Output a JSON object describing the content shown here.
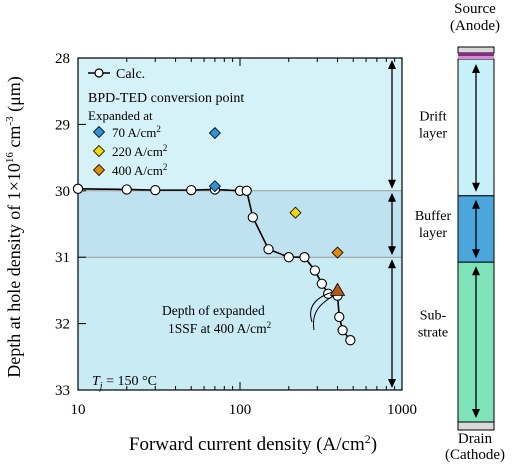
{
  "chart_data": {
    "type": "scatter",
    "xlabel": "Forward current density (A/cm",
    "xlabel_sup": "2",
    "xlabel_end": ")",
    "ylabel": "Depth at hole density of 1×10",
    "ylabel_sup": "16",
    "ylabel_mid": " cm",
    "ylabel_sup2": "-3",
    "ylabel_end": " (μm)",
    "x_scale": "log",
    "xlim": [
      10,
      1000
    ],
    "ylim": [
      28,
      33
    ],
    "y_inverted": true,
    "xticks": [
      "10",
      "100",
      "1000"
    ],
    "yticks": [
      "28",
      "29",
      "30",
      "31",
      "32",
      "33"
    ],
    "layer_boundaries": [
      30,
      31
    ],
    "layers": [
      {
        "label": "Drift",
        "label2": "layer",
        "range": [
          28,
          30
        ]
      },
      {
        "label": "Buffer",
        "label2": "layer",
        "range": [
          30,
          31
        ]
      },
      {
        "label": "Sub-",
        "label2": "strate",
        "range": [
          31,
          33
        ]
      }
    ],
    "legend": {
      "calc": "Calc.",
      "bpd_title": "BPD-TED conversion point",
      "expanded_at": "Expanded at",
      "markers": [
        {
          "label": "70 A/cm",
          "sup": "2",
          "color": "#2f8fd8"
        },
        {
          "label": "220 A/cm",
          "sup": "2",
          "color": "#f5d800"
        },
        {
          "label": "400 A/cm",
          "sup": "2",
          "color": "#e08a00"
        }
      ]
    },
    "series": [
      {
        "name": "Calc.",
        "kind": "line-with-markers",
        "points": [
          [
            10,
            29.97
          ],
          [
            20,
            29.98
          ],
          [
            30,
            29.99
          ],
          [
            50,
            29.99
          ],
          [
            70,
            29.98
          ],
          [
            100,
            30.0
          ],
          [
            110,
            30.0
          ],
          [
            120,
            30.4
          ],
          [
            150,
            30.88
          ],
          [
            200,
            31.0
          ],
          [
            250,
            31.0
          ],
          [
            290,
            31.2
          ],
          [
            320,
            31.4
          ],
          [
            350,
            31.55
          ],
          [
            400,
            31.58
          ],
          [
            410,
            31.9
          ],
          [
            430,
            32.1
          ],
          [
            480,
            32.25
          ]
        ]
      },
      {
        "name": "70 A/cm²",
        "kind": "diamond",
        "color": "#2f8fd8",
        "points": [
          [
            70,
            29.13
          ],
          [
            70,
            29.93
          ]
        ]
      },
      {
        "name": "220 A/cm²",
        "kind": "diamond",
        "color": "#f5d800",
        "points": [
          [
            220,
            30.33
          ]
        ]
      },
      {
        "name": "400 A/cm²",
        "kind": "diamond",
        "color": "#e08a00",
        "points": [
          [
            400,
            30.93
          ]
        ]
      },
      {
        "name": "Depth of expanded 1SSF at 400 A/cm²",
        "kind": "triangle",
        "color": "#b55a10",
        "points": [
          [
            400,
            31.5
          ]
        ]
      }
    ],
    "annotation": {
      "line1": "Depth of expanded",
      "line2": "1SSF at 400 A/cm",
      "line2_sup": "2"
    },
    "condition": {
      "var": "T",
      "sub": "j",
      "text": " = 150 °C"
    }
  },
  "side_panel": {
    "source_line1": "Source",
    "source_line2": "(Anode)",
    "drain_line1": "Drain",
    "drain_line2": "(Cathode)"
  },
  "colors": {
    "drift_bg": "#d6f2f9",
    "buffer_bg": "#bfe2f0",
    "substrate_bg": "#c9ecf4",
    "col_drift": "#c8f0f8",
    "col_buffer": "#4aa6dc",
    "col_substrate": "#7ee3b8",
    "anode_band1": "#8a2a86",
    "anode_band2": "#d48ad0"
  }
}
